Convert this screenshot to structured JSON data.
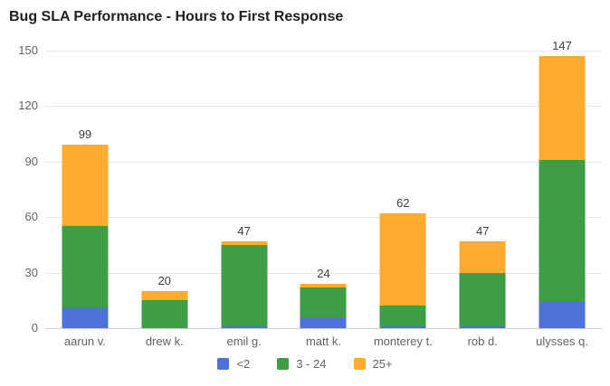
{
  "title": "Bug SLA Performance - Hours to First Response",
  "chart_data": {
    "type": "bar",
    "stacked": true,
    "title": "Bug SLA Performance - Hours to First Response",
    "categories": [
      "aarun v.",
      "drew k.",
      "emil g.",
      "matt k.",
      "monterey t.",
      "rob d.",
      "ulysses q."
    ],
    "series": [
      {
        "name": "<2",
        "color": "#4c72d8",
        "values": [
          11,
          0,
          1,
          6,
          1,
          1,
          14
        ]
      },
      {
        "name": "3 - 24",
        "color": "#3f9e45",
        "values": [
          44,
          15,
          44,
          16,
          11,
          29,
          77
        ]
      },
      {
        "name": "25+",
        "color": "#ffab30",
        "values": [
          44,
          5,
          2,
          2,
          50,
          17,
          56
        ]
      }
    ],
    "totals": [
      99,
      20,
      47,
      24,
      62,
      47,
      147
    ],
    "ylim": [
      0,
      150
    ],
    "yticks": [
      0,
      30,
      60,
      90,
      120,
      150
    ],
    "grid": true,
    "legend_position": "bottom",
    "xlabel": "",
    "ylabel": ""
  }
}
